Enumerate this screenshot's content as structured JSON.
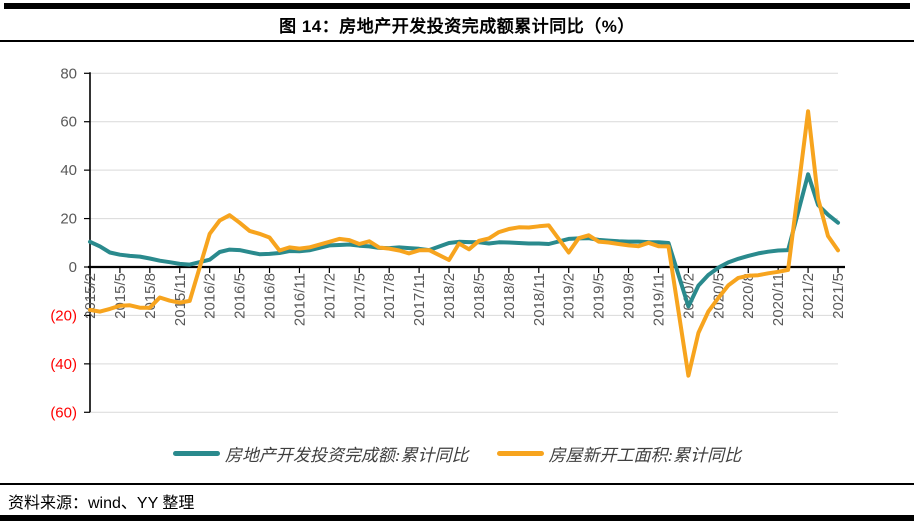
{
  "title": "图 14：房地产开发投资完成额累计同比（%）",
  "source": "资料来源：wind、YY 整理",
  "colors": {
    "series_invest": "#2a8a8d",
    "series_starts": "#f7a41e",
    "negative_tick_label": "#ff0000",
    "tick_label": "#595959",
    "gridline": "#d9d9d9",
    "axis": "#000000"
  },
  "chart_data": {
    "type": "line",
    "title": "图 14：房地产开发投资完成额累计同比（%）",
    "xlabel": "",
    "ylabel": "",
    "ylim": [
      -60,
      80
    ],
    "y_ticks": [
      80,
      60,
      40,
      20,
      0,
      -20,
      -40,
      -60
    ],
    "grid": true,
    "legend_position": "bottom",
    "x_tick_labels": [
      "2015/2",
      "2015/5",
      "2015/8",
      "2015/11",
      "2016/2",
      "2016/5",
      "2016/8",
      "2016/11",
      "2017/2",
      "2017/5",
      "2017/8",
      "2017/11",
      "2018/2",
      "2018/5",
      "2018/8",
      "2018/11",
      "2019/2",
      "2019/5",
      "2019/8",
      "2019/11",
      "2020/2",
      "2020/5",
      "2020/8",
      "2020/11",
      "2021/2",
      "2021/5"
    ],
    "series": [
      {
        "name": "房地产开发投资完成额:累计同比",
        "color": "#2a8a8d",
        "points": [
          [
            "2015/2",
            10.4
          ],
          [
            "2015/3",
            8.5
          ],
          [
            "2015/4",
            6.0
          ],
          [
            "2015/5",
            5.1
          ],
          [
            "2015/6",
            4.6
          ],
          [
            "2015/7",
            4.3
          ],
          [
            "2015/8",
            3.5
          ],
          [
            "2015/9",
            2.6
          ],
          [
            "2015/10",
            2.0
          ],
          [
            "2015/11",
            1.3
          ],
          [
            "2015/12",
            1.0
          ],
          [
            "2016/2",
            3.0
          ],
          [
            "2016/3",
            6.2
          ],
          [
            "2016/4",
            7.2
          ],
          [
            "2016/5",
            7.0
          ],
          [
            "2016/6",
            6.1
          ],
          [
            "2016/7",
            5.3
          ],
          [
            "2016/8",
            5.4
          ],
          [
            "2016/9",
            5.8
          ],
          [
            "2016/10",
            6.6
          ],
          [
            "2016/11",
            6.5
          ],
          [
            "2016/12",
            6.9
          ],
          [
            "2017/2",
            8.9
          ],
          [
            "2017/3",
            9.1
          ],
          [
            "2017/4",
            9.3
          ],
          [
            "2017/5",
            8.8
          ],
          [
            "2017/6",
            8.5
          ],
          [
            "2017/7",
            7.9
          ],
          [
            "2017/8",
            7.8
          ],
          [
            "2017/9",
            8.1
          ],
          [
            "2017/10",
            7.8
          ],
          [
            "2017/11",
            7.5
          ],
          [
            "2017/12",
            7.0
          ],
          [
            "2018/2",
            9.9
          ],
          [
            "2018/3",
            10.4
          ],
          [
            "2018/4",
            10.3
          ],
          [
            "2018/5",
            10.2
          ],
          [
            "2018/6",
            9.7
          ],
          [
            "2018/7",
            10.2
          ],
          [
            "2018/8",
            10.1
          ],
          [
            "2018/9",
            9.9
          ],
          [
            "2018/10",
            9.7
          ],
          [
            "2018/11",
            9.7
          ],
          [
            "2018/12",
            9.5
          ],
          [
            "2019/2",
            11.6
          ],
          [
            "2019/3",
            11.8
          ],
          [
            "2019/4",
            11.9
          ],
          [
            "2019/5",
            11.2
          ],
          [
            "2019/6",
            10.9
          ],
          [
            "2019/7",
            10.6
          ],
          [
            "2019/8",
            10.5
          ],
          [
            "2019/9",
            10.5
          ],
          [
            "2019/10",
            10.3
          ],
          [
            "2019/11",
            10.2
          ],
          [
            "2019/12",
            9.9
          ],
          [
            "2020/2",
            -16.3
          ],
          [
            "2020/3",
            -7.7
          ],
          [
            "2020/4",
            -3.3
          ],
          [
            "2020/5",
            -0.3
          ],
          [
            "2020/6",
            1.9
          ],
          [
            "2020/7",
            3.4
          ],
          [
            "2020/8",
            4.6
          ],
          [
            "2020/9",
            5.6
          ],
          [
            "2020/10",
            6.3
          ],
          [
            "2020/11",
            6.8
          ],
          [
            "2020/12",
            7.0
          ],
          [
            "2021/2",
            38.3
          ],
          [
            "2021/3",
            25.6
          ],
          [
            "2021/4",
            21.6
          ],
          [
            "2021/5",
            18.3
          ]
        ]
      },
      {
        "name": "房屋新开工面积:累计同比",
        "color": "#f7a41e",
        "points": [
          [
            "2015/2",
            -17.7
          ],
          [
            "2015/3",
            -18.4
          ],
          [
            "2015/4",
            -17.3
          ],
          [
            "2015/5",
            -16.0
          ],
          [
            "2015/6",
            -15.8
          ],
          [
            "2015/7",
            -16.8
          ],
          [
            "2015/8",
            -16.8
          ],
          [
            "2015/9",
            -12.6
          ],
          [
            "2015/10",
            -13.9
          ],
          [
            "2015/11",
            -14.7
          ],
          [
            "2015/12",
            -14.0
          ],
          [
            "2016/2",
            13.7
          ],
          [
            "2016/3",
            19.2
          ],
          [
            "2016/4",
            21.4
          ],
          [
            "2016/5",
            18.3
          ],
          [
            "2016/6",
            14.9
          ],
          [
            "2016/7",
            13.7
          ],
          [
            "2016/8",
            12.2
          ],
          [
            "2016/9",
            6.8
          ],
          [
            "2016/10",
            8.1
          ],
          [
            "2016/11",
            7.6
          ],
          [
            "2016/12",
            8.1
          ],
          [
            "2017/2",
            10.4
          ],
          [
            "2017/3",
            11.6
          ],
          [
            "2017/4",
            11.1
          ],
          [
            "2017/5",
            9.5
          ],
          [
            "2017/6",
            10.6
          ],
          [
            "2017/7",
            8.0
          ],
          [
            "2017/8",
            7.6
          ],
          [
            "2017/9",
            6.8
          ],
          [
            "2017/10",
            5.6
          ],
          [
            "2017/11",
            6.9
          ],
          [
            "2017/12",
            7.0
          ],
          [
            "2018/2",
            2.9
          ],
          [
            "2018/3",
            9.7
          ],
          [
            "2018/4",
            7.3
          ],
          [
            "2018/5",
            10.8
          ],
          [
            "2018/6",
            11.8
          ],
          [
            "2018/7",
            14.4
          ],
          [
            "2018/8",
            15.7
          ],
          [
            "2018/9",
            16.4
          ],
          [
            "2018/10",
            16.3
          ],
          [
            "2018/11",
            16.8
          ],
          [
            "2018/12",
            17.2
          ],
          [
            "2019/2",
            6.0
          ],
          [
            "2019/3",
            11.9
          ],
          [
            "2019/4",
            13.1
          ],
          [
            "2019/5",
            10.5
          ],
          [
            "2019/6",
            10.1
          ],
          [
            "2019/7",
            9.5
          ],
          [
            "2019/8",
            8.9
          ],
          [
            "2019/9",
            8.6
          ],
          [
            "2019/10",
            10.0
          ],
          [
            "2019/11",
            8.6
          ],
          [
            "2019/12",
            8.5
          ],
          [
            "2020/2",
            -44.9
          ],
          [
            "2020/3",
            -27.2
          ],
          [
            "2020/4",
            -18.4
          ],
          [
            "2020/5",
            -12.8
          ],
          [
            "2020/6",
            -7.6
          ],
          [
            "2020/7",
            -4.5
          ],
          [
            "2020/8",
            -3.6
          ],
          [
            "2020/9",
            -3.4
          ],
          [
            "2020/10",
            -2.6
          ],
          [
            "2020/11",
            -2.0
          ],
          [
            "2020/12",
            -1.2
          ],
          [
            "2021/2",
            64.3
          ],
          [
            "2021/3",
            28.2
          ],
          [
            "2021/4",
            12.8
          ],
          [
            "2021/5",
            6.9
          ]
        ]
      }
    ]
  }
}
